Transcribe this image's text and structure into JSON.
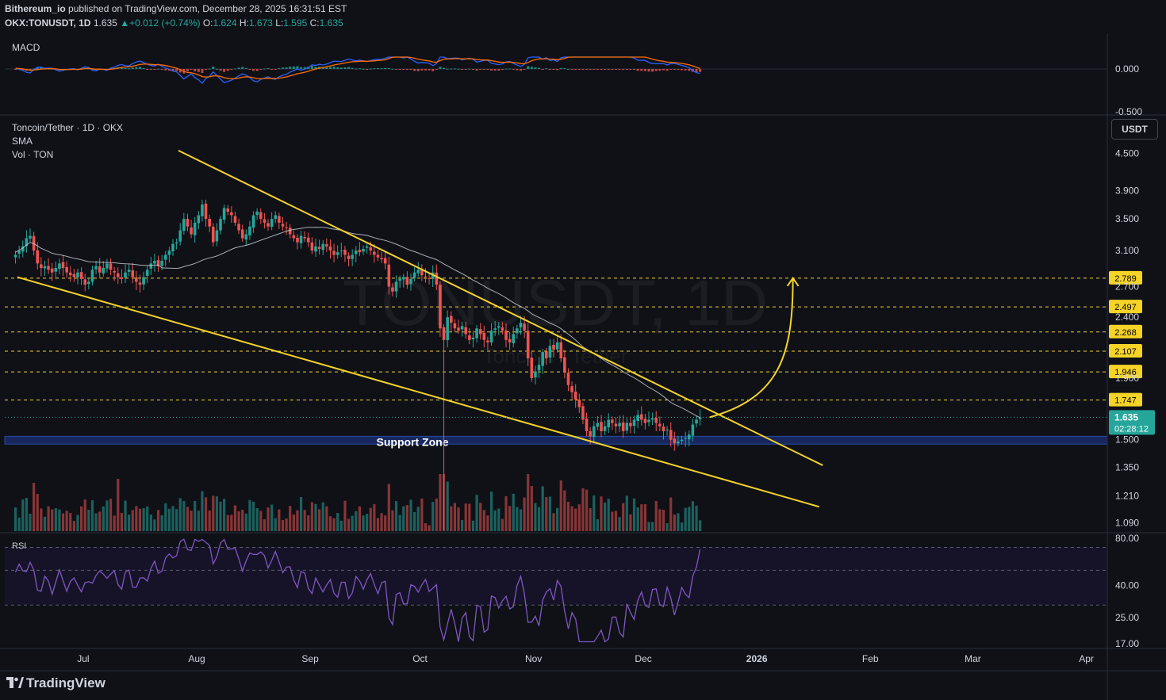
{
  "header": {
    "publisher": "Bithereum_io",
    "published_text": "published on TradingView.com, December 28, 2025 16:31:51 EST",
    "symbol": "OKX:TONUSDT, 1D",
    "last": "1.635",
    "change": "+0.012 (+0.74%)",
    "open_label": "O:",
    "open": "1.624",
    "high_label": "H:",
    "high": "1.673",
    "low_label": "L:",
    "low": "1.595",
    "close_label": "C:",
    "close": "1.635"
  },
  "colors": {
    "background": "#0f1117",
    "up": "#26a69a",
    "down": "#ef5350",
    "trendline": "#f5d327",
    "sma": "#d1d4dc",
    "support_zone": "#1a2d6b",
    "rsi_line": "#7e57c2",
    "macd_line": "#2962ff",
    "signal_line": "#ff6d00",
    "price_tag": "#26a69a"
  },
  "macd_pane": {
    "label": "MACD",
    "ticks": [
      "0.000",
      "-0.500"
    ]
  },
  "main_pane": {
    "title": "Toncoin/Tether · 1D · OKX",
    "sma_label": "SMA",
    "vol_label": "Vol · TON",
    "watermark": "TONUSDT, 1D",
    "watermark_sub": "Toncoin / Tether",
    "currency_button": "USDT",
    "support_zone_label": "Support Zone",
    "price_ticks": [
      "4.500",
      "3.900",
      "3.500",
      "3.100",
      "2.700",
      "2.400",
      "1.900",
      "1.500",
      "1.350",
      "1.210",
      "1.090"
    ],
    "level_labels": [
      "2.789",
      "2.497",
      "2.268",
      "2.107",
      "1.946",
      "1.747"
    ],
    "current_price": "1.635",
    "countdown": "02:28:12"
  },
  "rsi_pane": {
    "label": "RSI",
    "ticks": [
      "80.00",
      "40.00",
      "25.00",
      "17.00"
    ]
  },
  "time_axis": {
    "labels": [
      "Jul",
      "Aug",
      "Sep",
      "Oct",
      "Nov",
      "Dec",
      "2026",
      "Feb",
      "Mar",
      "Apr"
    ]
  },
  "branding": {
    "logo_text": "TradingView"
  },
  "chart_data": {
    "type": "candlestick",
    "title": "Toncoin/Tether · 1D · OKX",
    "price_scale": "log",
    "ylim": [
      1.05,
      5.2
    ],
    "x_range": [
      "2025-06-10",
      "2026-04-05"
    ],
    "closes": [
      3.05,
      3.1,
      3.15,
      3.25,
      3.28,
      3.1,
      2.95,
      2.9,
      2.92,
      2.88,
      2.85,
      2.9,
      2.95,
      2.9,
      2.85,
      2.82,
      2.8,
      2.85,
      2.78,
      2.72,
      2.75,
      2.88,
      2.92,
      2.85,
      2.9,
      2.95,
      2.88,
      2.85,
      2.8,
      2.78,
      2.85,
      2.88,
      2.8,
      2.75,
      2.72,
      2.8,
      2.88,
      2.95,
      2.98,
      2.92,
      2.98,
      3.05,
      3.1,
      3.18,
      3.2,
      3.35,
      3.5,
      3.4,
      3.3,
      3.45,
      3.55,
      3.7,
      3.5,
      3.4,
      3.2,
      3.35,
      3.5,
      3.65,
      3.6,
      3.55,
      3.45,
      3.35,
      3.25,
      3.3,
      3.4,
      3.55,
      3.6,
      3.5,
      3.45,
      3.4,
      3.5,
      3.55,
      3.45,
      3.4,
      3.38,
      3.3,
      3.25,
      3.2,
      3.28,
      3.25,
      3.2,
      3.1,
      3.15,
      3.12,
      3.18,
      3.15,
      3.1,
      3.05,
      3.08,
      3.1,
      3.05,
      3.0,
      3.05,
      3.1,
      3.08,
      3.12,
      3.15,
      3.1,
      3.05,
      3.02,
      3.0,
      2.95,
      2.7,
      2.65,
      2.75,
      2.78,
      2.8,
      2.72,
      2.78,
      2.85,
      2.88,
      2.82,
      2.8,
      2.78,
      2.85,
      2.72,
      2.3,
      2.2,
      2.4,
      2.35,
      2.3,
      2.28,
      2.32,
      2.25,
      2.2,
      2.22,
      2.3,
      2.25,
      2.2,
      2.18,
      2.28,
      2.3,
      2.32,
      2.28,
      2.2,
      2.18,
      2.25,
      2.3,
      2.35,
      2.28,
      2.05,
      1.9,
      1.95,
      2.0,
      2.1,
      2.05,
      2.15,
      2.12,
      2.18,
      2.05,
      1.95,
      1.85,
      1.8,
      1.75,
      1.7,
      1.62,
      1.55,
      1.52,
      1.58,
      1.6,
      1.55,
      1.58,
      1.62,
      1.6,
      1.58,
      1.6,
      1.55,
      1.6,
      1.58,
      1.62,
      1.65,
      1.62,
      1.6,
      1.62,
      1.63,
      1.6,
      1.58,
      1.55,
      1.56,
      1.5,
      1.48,
      1.49,
      1.5,
      1.51,
      1.53,
      1.59,
      1.62,
      1.635
    ],
    "sma_period_note": "SMA overlay",
    "horizontal_levels": [
      2.789,
      2.497,
      2.268,
      2.107,
      1.946,
      1.747
    ],
    "support_zone": [
      1.475,
      1.52
    ],
    "trendlines": [
      {
        "name": "upper",
        "from": [
          "2025-07-27",
          4.55
        ],
        "to": [
          "2026-01-19",
          1.36
        ]
      },
      {
        "name": "lower",
        "from": [
          "2025-06-13",
          2.8
        ],
        "to": [
          "2026-01-18",
          1.16
        ]
      }
    ],
    "projection": {
      "from": 1.635,
      "to": 2.789
    },
    "rsi": {
      "levels": [
        70,
        30
      ],
      "last": 68
    },
    "macd": {
      "zero": 0.0,
      "min": -0.5
    }
  }
}
